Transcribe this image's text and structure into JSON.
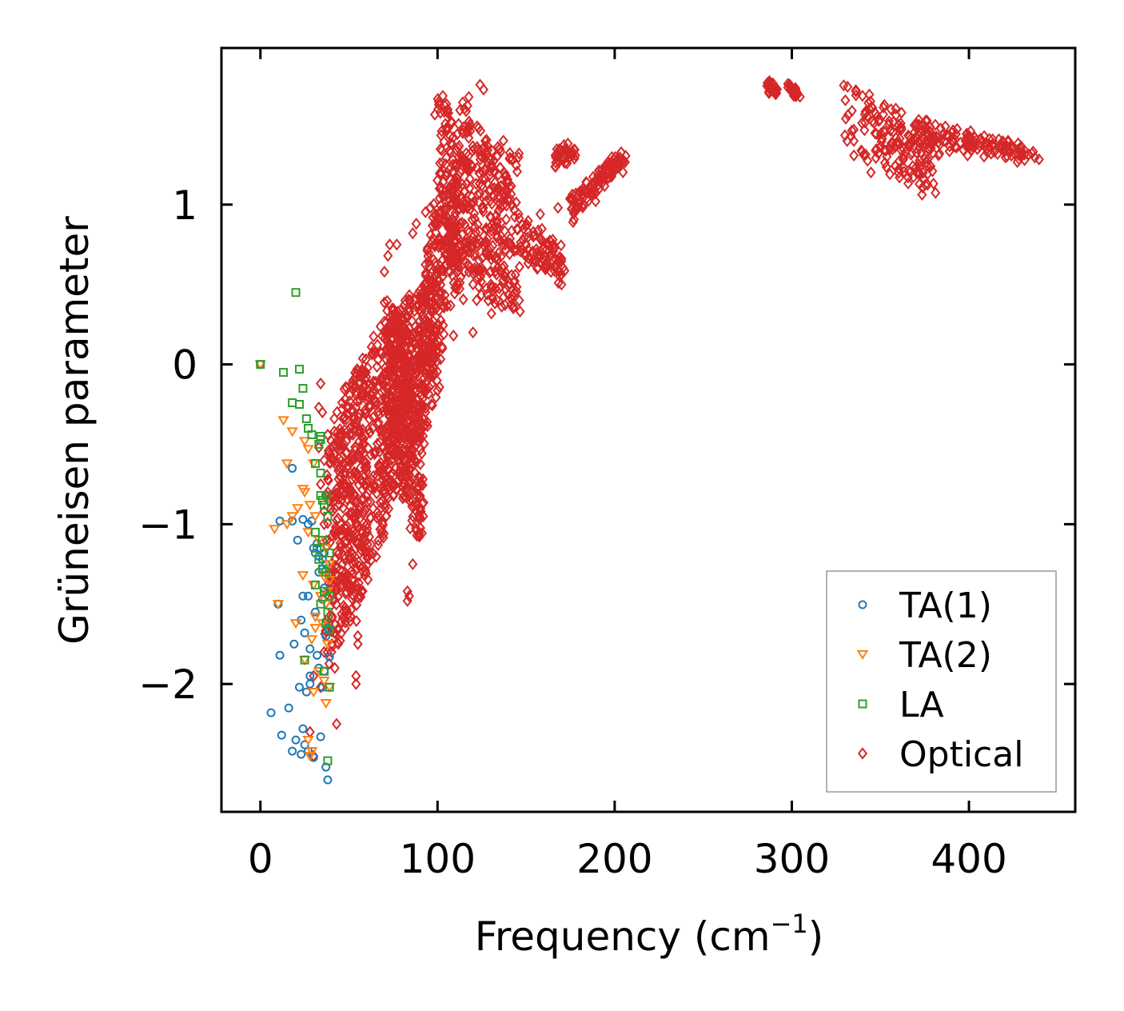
{
  "chart_data": {
    "type": "scatter",
    "title": "",
    "xlabel": "Frequency (cm",
    "xlabel_sup": "−1",
    "xlabel_close": ")",
    "ylabel": "Grüneisen parameter",
    "xlim": [
      -22,
      460
    ],
    "ylim": [
      -2.8,
      1.98
    ],
    "xticks": [
      0,
      100,
      200,
      300,
      400
    ],
    "yticks": [
      -2,
      -1,
      0,
      1
    ],
    "xtick_labels": [
      "0",
      "100",
      "200",
      "300",
      "400"
    ],
    "ytick_labels": [
      "−2",
      "−1",
      "0",
      "1"
    ],
    "grid": false,
    "legend_position": "lower-right",
    "series": [
      {
        "name": "TA(1)",
        "marker": "circle",
        "color": "#1f77b4",
        "points": [
          [
            0,
            0
          ],
          [
            18,
            -0.65
          ],
          [
            11,
            -0.98
          ],
          [
            18,
            -0.98
          ],
          [
            21,
            -1.1
          ],
          [
            24,
            -0.97
          ],
          [
            29,
            -0.98
          ],
          [
            27,
            -1.0
          ],
          [
            30,
            -1.15
          ],
          [
            31,
            -1.18
          ],
          [
            32,
            -1.12
          ],
          [
            33,
            -1.2
          ],
          [
            34,
            -1.15
          ],
          [
            35,
            -1.22
          ],
          [
            36,
            -1.18
          ],
          [
            37,
            -1.25
          ],
          [
            33,
            -1.3
          ],
          [
            35,
            -1.28
          ],
          [
            27,
            -1.45
          ],
          [
            10,
            -1.5
          ],
          [
            35,
            -1.47
          ],
          [
            23,
            -1.6
          ],
          [
            25,
            -1.68
          ],
          [
            19,
            -1.75
          ],
          [
            28,
            -1.78
          ],
          [
            32,
            -1.82
          ],
          [
            37,
            -1.7
          ],
          [
            38,
            -1.65
          ],
          [
            11,
            -1.82
          ],
          [
            39,
            -1.83
          ],
          [
            33,
            -1.9
          ],
          [
            36,
            -1.92
          ],
          [
            28,
            -1.95
          ],
          [
            22,
            -2.02
          ],
          [
            26,
            -2.05
          ],
          [
            28,
            -2.0
          ],
          [
            35,
            -2.02
          ],
          [
            16,
            -2.15
          ],
          [
            6,
            -2.18
          ],
          [
            24,
            -2.28
          ],
          [
            12,
            -2.32
          ],
          [
            20,
            -2.35
          ],
          [
            34,
            -2.33
          ],
          [
            25,
            -2.38
          ],
          [
            27,
            -2.42
          ],
          [
            23,
            -2.44
          ],
          [
            18,
            -2.42
          ],
          [
            30,
            -2.46
          ],
          [
            37,
            -2.52
          ],
          [
            38,
            -2.6
          ],
          [
            24,
            -1.45
          ],
          [
            31,
            -1.55
          ],
          [
            36,
            -1.4
          ]
        ]
      },
      {
        "name": "TA(2)",
        "marker": "triangle-down",
        "color": "#ff7f0e",
        "points": [
          [
            0,
            0
          ],
          [
            13,
            -0.35
          ],
          [
            18,
            -0.42
          ],
          [
            25,
            -0.48
          ],
          [
            27,
            -0.53
          ],
          [
            15,
            -0.62
          ],
          [
            30,
            -0.62
          ],
          [
            24,
            -0.78
          ],
          [
            25,
            -0.8
          ],
          [
            21,
            -0.9
          ],
          [
            28,
            -0.88
          ],
          [
            18,
            -0.95
          ],
          [
            31,
            -0.95
          ],
          [
            8,
            -1.03
          ],
          [
            15,
            -1.0
          ],
          [
            27,
            -1.05
          ],
          [
            33,
            -1.1
          ],
          [
            37,
            -1.15
          ],
          [
            39,
            -1.25
          ],
          [
            24,
            -1.32
          ],
          [
            30,
            -1.38
          ],
          [
            36,
            -1.33
          ],
          [
            39,
            -1.35
          ],
          [
            34,
            -1.45
          ],
          [
            10,
            -1.5
          ],
          [
            37,
            -1.5
          ],
          [
            31,
            -1.58
          ],
          [
            35,
            -1.62
          ],
          [
            20,
            -1.62
          ],
          [
            29,
            -1.72
          ],
          [
            38,
            -1.75
          ],
          [
            25,
            -1.85
          ],
          [
            33,
            -1.92
          ],
          [
            36,
            -1.98
          ],
          [
            39,
            -2.02
          ],
          [
            30,
            -2.05
          ],
          [
            37,
            -2.12
          ],
          [
            27,
            -2.35
          ],
          [
            29,
            -2.42
          ],
          [
            28,
            -2.45
          ],
          [
            31,
            -1.65
          ],
          [
            38,
            -1.42
          ]
        ]
      },
      {
        "name": "LA",
        "marker": "square",
        "color": "#2ca02c",
        "points": [
          [
            0,
            0
          ],
          [
            20,
            0.45
          ],
          [
            22,
            -0.03
          ],
          [
            13,
            -0.05
          ],
          [
            24,
            -0.15
          ],
          [
            18,
            -0.24
          ],
          [
            22,
            -0.25
          ],
          [
            26,
            -0.34
          ],
          [
            27,
            -0.4
          ],
          [
            29,
            -0.44
          ],
          [
            34,
            -0.45
          ],
          [
            34,
            -0.47
          ],
          [
            33,
            -0.5
          ],
          [
            31,
            -0.62
          ],
          [
            34,
            -0.68
          ],
          [
            34,
            -0.82
          ],
          [
            37,
            -0.82
          ],
          [
            35,
            -0.85
          ],
          [
            36,
            -0.88
          ],
          [
            38,
            -0.95
          ],
          [
            31,
            -1.05
          ],
          [
            35,
            -1.1
          ],
          [
            39,
            -1.18
          ],
          [
            33,
            -1.22
          ],
          [
            35,
            -1.28
          ],
          [
            31,
            -1.38
          ],
          [
            36,
            -1.42
          ],
          [
            39,
            -1.45
          ],
          [
            34,
            -1.5
          ],
          [
            38,
            -1.55
          ],
          [
            37,
            -1.62
          ],
          [
            39,
            -1.66
          ],
          [
            25,
            -1.85
          ],
          [
            36,
            -1.92
          ],
          [
            39,
            -2.02
          ],
          [
            38,
            -2.48
          ],
          [
            32,
            -1.15
          ],
          [
            37,
            -1.3
          ]
        ]
      },
      {
        "name": "Optical",
        "marker": "diamond",
        "color": "#d62728",
        "generator": "clusters",
        "clusters": [
          {
            "n": 420,
            "x0": 38,
            "x1": 60,
            "ytop": [
              -0.45,
              0.1
            ],
            "ybot": [
              -1.95,
              -1.35
            ],
            "sx": 2.0,
            "sy": 0.1
          },
          {
            "n": 480,
            "x0": 60,
            "x1": 100,
            "ytop": [
              0.1,
              0.6
            ],
            "ybot": [
              -1.35,
              -0.15
            ],
            "sx": 3.0,
            "sy": 0.12
          },
          {
            "n": 380,
            "x0": 72,
            "x1": 92,
            "ytop": [
              0.4,
              0.2
            ],
            "ybot": [
              -0.45,
              -1.25
            ],
            "sx": 2.0,
            "sy": 0.1
          },
          {
            "n": 450,
            "x0": 100,
            "x1": 145,
            "ytop": [
              1.7,
              1.3
            ],
            "ybot": [
              0.6,
              0.3
            ],
            "sx": 3.0,
            "sy": 0.12
          },
          {
            "n": 180,
            "x0": 92,
            "x1": 112,
            "ytop": [
              0.9,
              1.35
            ],
            "ybot": [
              -0.3,
              0.5
            ],
            "sx": 2.0,
            "sy": 0.1
          },
          {
            "n": 90,
            "x0": 145,
            "x1": 172,
            "ytop": [
              0.95,
              0.7
            ],
            "ybot": [
              0.7,
              0.5
            ],
            "sx": 1.5,
            "sy": 0.05
          },
          {
            "n": 40,
            "x0": 166,
            "x1": 178,
            "ytop": [
              1.35,
              1.38
            ],
            "ybot": [
              1.22,
              1.3
            ],
            "sx": 1.0,
            "sy": 0.03
          },
          {
            "n": 110,
            "x0": 175,
            "x1": 206,
            "ytop": [
              1.05,
              1.35
            ],
            "ybot": [
              0.9,
              1.25
            ],
            "sx": 1.2,
            "sy": 0.03
          },
          {
            "n": 30,
            "x0": 286,
            "x1": 292,
            "ytop": [
              1.78,
              1.72
            ],
            "ybot": [
              1.72,
              1.68
            ],
            "sx": 0.8,
            "sy": 0.02
          },
          {
            "n": 30,
            "x0": 298,
            "x1": 304,
            "ytop": [
              1.76,
              1.7
            ],
            "ybot": [
              1.72,
              1.66
            ],
            "sx": 0.8,
            "sy": 0.02
          },
          {
            "n": 160,
            "x0": 330,
            "x1": 380,
            "ytop": [
              1.78,
              1.45
            ],
            "ybot": [
              1.35,
              1.08
            ],
            "sx": 2.0,
            "sy": 0.06
          },
          {
            "n": 140,
            "x0": 370,
            "x1": 438,
            "ytop": [
              1.55,
              1.32
            ],
            "ybot": [
              1.35,
              1.3
            ],
            "sx": 1.5,
            "sy": 0.04
          }
        ],
        "extra_points": [
          [
            34,
            -0.12
          ],
          [
            33,
            -0.27
          ],
          [
            35,
            -0.3
          ],
          [
            38,
            -0.44
          ],
          [
            33,
            -0.52
          ],
          [
            40,
            -0.48
          ],
          [
            36,
            -0.6
          ],
          [
            34,
            -0.75
          ],
          [
            38,
            -0.8
          ],
          [
            36,
            -1.0
          ],
          [
            30,
            -1.95
          ],
          [
            34,
            -2.02
          ],
          [
            36,
            -1.8
          ],
          [
            42,
            -1.9
          ],
          [
            43,
            -2.25
          ],
          [
            28,
            -2.3
          ],
          [
            30,
            -2.45
          ],
          [
            55,
            -1.7
          ],
          [
            55,
            -1.75
          ],
          [
            54,
            -1.95
          ],
          [
            54,
            -2.0
          ],
          [
            83,
            -1.42
          ],
          [
            84,
            -1.45
          ],
          [
            83,
            -1.48
          ],
          [
            86,
            -1.25
          ],
          [
            72,
            0.68
          ],
          [
            73,
            0.75
          ],
          [
            77,
            0.75
          ],
          [
            70,
            0.58
          ],
          [
            86,
            0.82
          ],
          [
            88,
            0.88
          ],
          [
            95,
            0.7
          ],
          [
            103,
            1.68
          ],
          [
            104,
            1.62
          ],
          [
            124,
            1.75
          ],
          [
            126,
            1.72
          ],
          [
            146,
            1.32
          ],
          [
            142,
            1.28
          ],
          [
            135,
            1.35
          ],
          [
            131,
            0.48
          ],
          [
            120,
            0.2
          ],
          [
            109,
            0.18
          ],
          [
            170,
            0.5
          ],
          [
            169,
            0.55
          ],
          [
            165,
            0.78
          ],
          [
            158,
            0.94
          ],
          [
            168,
            0.98
          ]
        ]
      }
    ]
  }
}
